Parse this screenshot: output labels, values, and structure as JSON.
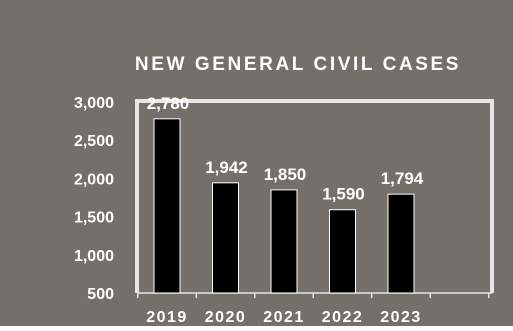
{
  "colors": {
    "background": "#747069",
    "bar_fill": "#000000",
    "bar_stroke": "#ffffff",
    "frame": "#e6e6e6",
    "text": "#ffffff"
  },
  "chart_data": {
    "type": "bar",
    "title": "NEW GENERAL CIVIL CASES",
    "xlabel": "",
    "ylabel": "",
    "categories": [
      "2019",
      "2020",
      "2021",
      "2022",
      "2023"
    ],
    "values": [
      2780,
      1942,
      1850,
      1590,
      1794
    ],
    "data_labels": [
      "2,780",
      "1,942",
      "1,850",
      "1,590",
      "1,794"
    ],
    "ylim": [
      500,
      3000
    ],
    "yticks": [
      500,
      1000,
      1500,
      2000,
      2500,
      3000
    ],
    "ytick_labels": [
      "500",
      "1,000",
      "1,500",
      "2,000",
      "2,500",
      "3,000"
    ],
    "grid": false,
    "legend": "none"
  }
}
